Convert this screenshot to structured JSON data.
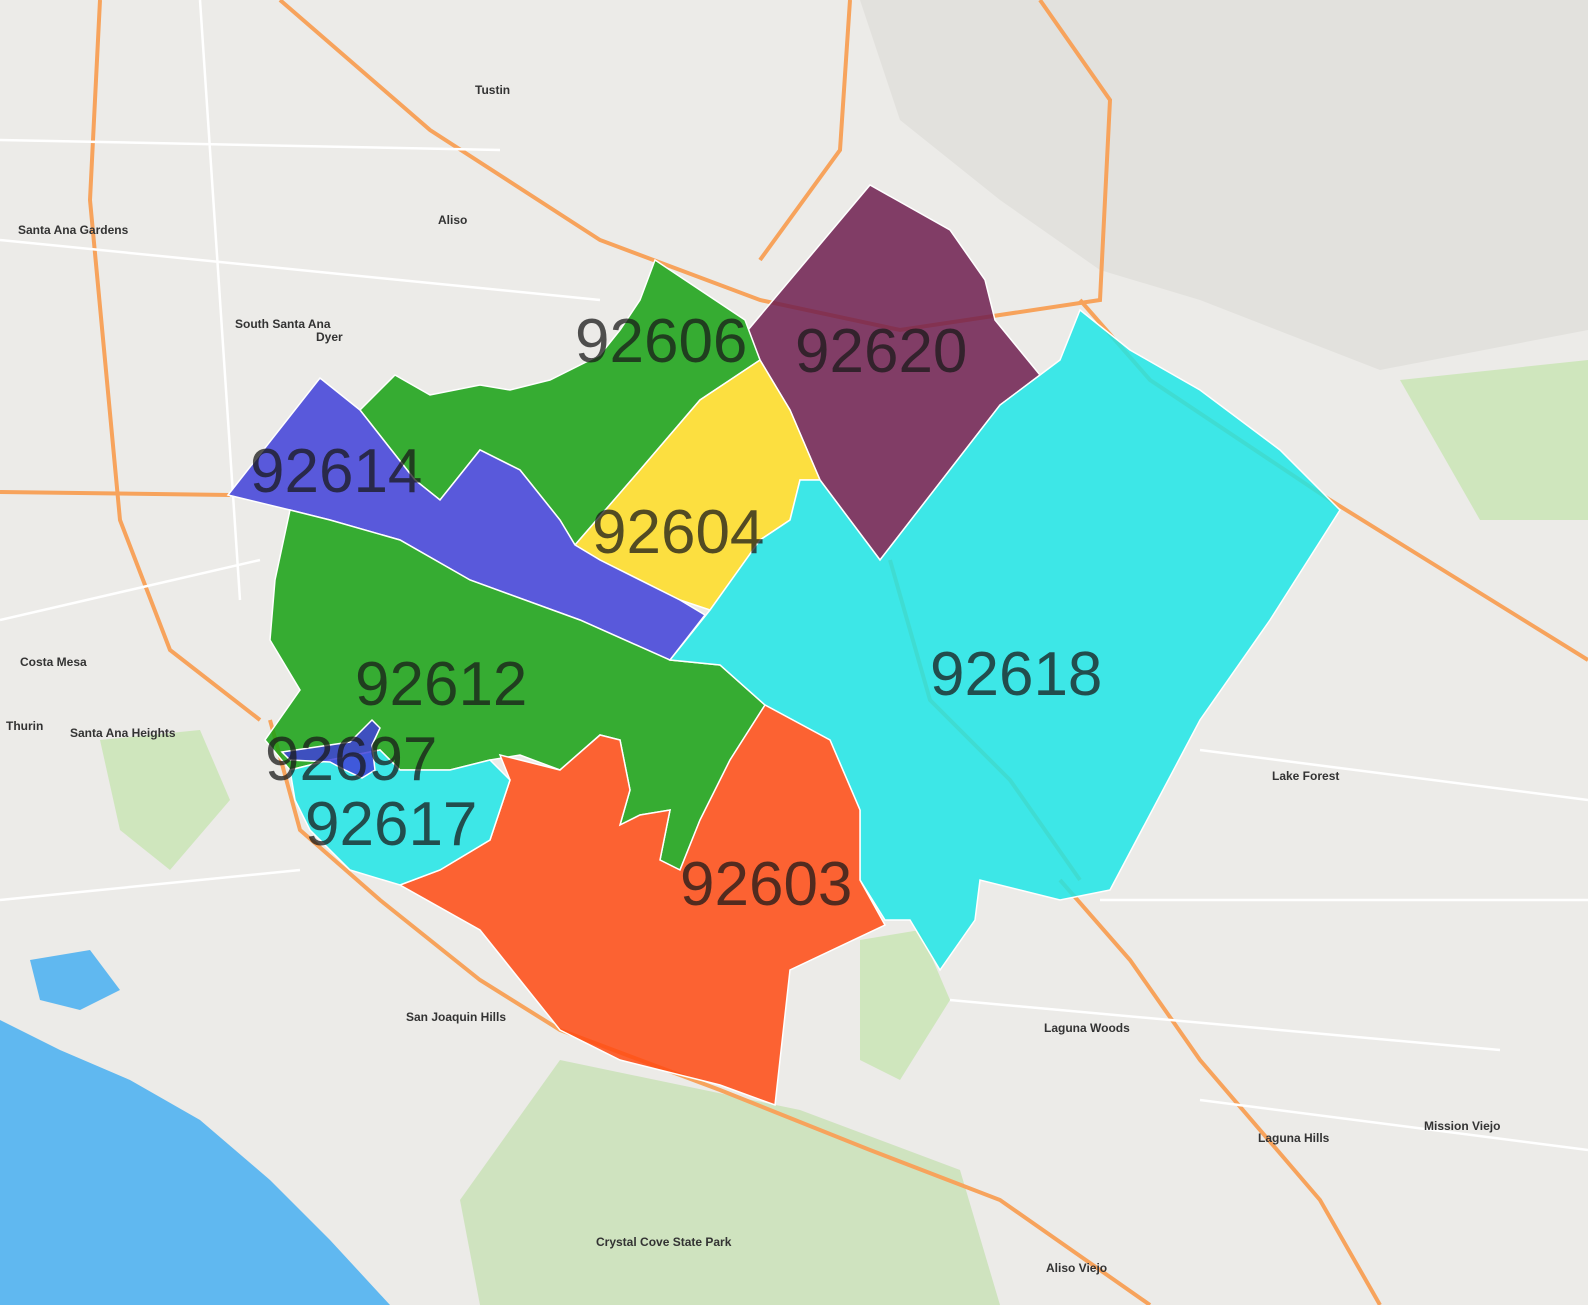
{
  "map": {
    "zip_areas": [
      {
        "zip": "92620",
        "color": "#6e1f4f"
      },
      {
        "zip": "92606",
        "color": "#16a112"
      },
      {
        "zip": "92604",
        "color": "#ffdd22"
      },
      {
        "zip": "92614",
        "color": "#4040d8"
      },
      {
        "zip": "92612",
        "color": "#16a112"
      },
      {
        "zip": "92618",
        "color": "#1ee6e6"
      },
      {
        "zip": "92603",
        "color": "#ff4a12"
      },
      {
        "zip": "92617",
        "color": "#1ee6e6"
      },
      {
        "zip": "92697",
        "color": "#4040d8"
      }
    ],
    "places": [
      "Tustin",
      "Costa Mesa",
      "Santa Ana Gardens",
      "South Santa Ana",
      "Dyer",
      "Aliso",
      "Santa Ana Heights",
      "San Joaquin Hills",
      "Lake Forest",
      "Laguna Woods",
      "Laguna Hills",
      "Mission Viejo",
      "Aliso Viejo",
      "Crystal Cove State Park",
      "Thurin"
    ],
    "colors": {
      "land": "#ecebe8",
      "water": "#60b8f0",
      "freeway": "#f7a35c",
      "park": "#bfe3a8"
    }
  }
}
